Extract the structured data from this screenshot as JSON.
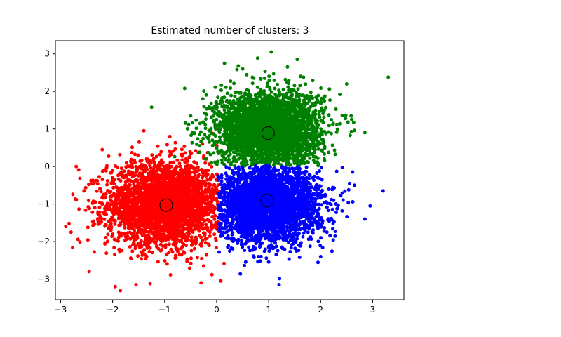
{
  "chart_data": {
    "type": "scatter",
    "title": "Estimated number of clusters: 3",
    "xlabel": "",
    "ylabel": "",
    "xlim": [
      -3.1,
      3.6
    ],
    "ylim": [
      -3.55,
      3.35
    ],
    "xticks": [
      -3,
      -2,
      -1,
      0,
      1,
      2,
      3
    ],
    "yticks": [
      -3,
      -2,
      -1,
      0,
      1,
      2,
      3
    ],
    "grid": false,
    "series": [
      {
        "color": "#ff0000",
        "center": [
          -1.0,
          -1.0
        ],
        "spread": 0.55,
        "region": "x<0.05",
        "count": 3200,
        "outliers": [
          [
            -2.8,
            -1.75
          ],
          [
            -2.45,
            -2.8
          ],
          [
            -1.95,
            -3.2
          ],
          [
            -1.55,
            -3.15
          ],
          [
            -0.3,
            -3.1
          ],
          [
            0.08,
            -3.05
          ],
          [
            -2.9,
            -1.6
          ],
          [
            -2.7,
            0.0
          ],
          [
            -2.2,
            0.45
          ],
          [
            -1.4,
            0.95
          ],
          [
            -0.9,
            0.8
          ],
          [
            -2.55,
            -0.65
          ]
        ]
      },
      {
        "color": "#008000",
        "center": [
          1.0,
          1.0
        ],
        "spread": 0.5,
        "region": "y>0",
        "count": 3200,
        "outliers": [
          [
            3.3,
            2.38
          ],
          [
            1.05,
            3.05
          ],
          [
            -1.25,
            1.58
          ],
          [
            0.15,
            2.75
          ],
          [
            2.5,
            2.2
          ],
          [
            2.85,
            0.9
          ],
          [
            -0.5,
            1.35
          ],
          [
            0.5,
            2.6
          ],
          [
            1.55,
            2.85
          ]
        ]
      },
      {
        "color": "#0000ff",
        "center": [
          1.0,
          -1.0
        ],
        "spread": 0.5,
        "region": "x>0 and y<0",
        "count": 3200,
        "outliers": [
          [
            1.2,
            -3.15
          ],
          [
            3.2,
            -0.65
          ],
          [
            2.95,
            -1.05
          ],
          [
            2.85,
            -1.4
          ],
          [
            0.25,
            -2.25
          ],
          [
            2.0,
            -2.4
          ],
          [
            2.65,
            -0.5
          ],
          [
            0.35,
            -0.9
          ]
        ]
      }
    ],
    "centers": [
      [
        -0.97,
        -1.03
      ],
      [
        0.99,
        0.89
      ],
      [
        0.97,
        -0.91
      ]
    ]
  }
}
